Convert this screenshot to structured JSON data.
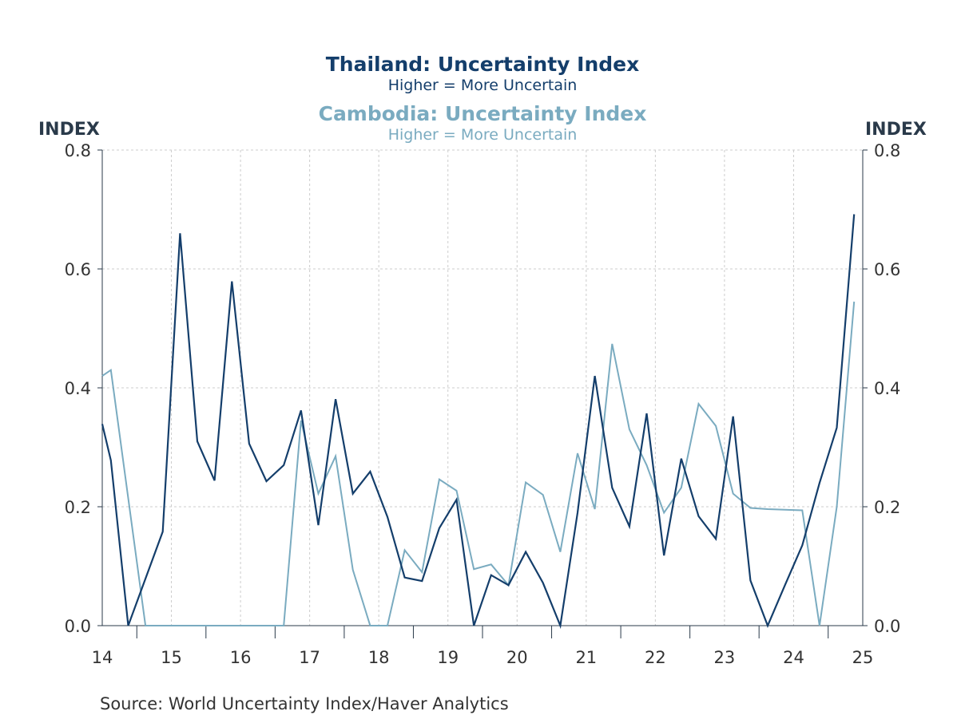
{
  "header": {
    "title_thailand": "Thailand: Uncertainty Index",
    "subtitle_thailand": "Higher = More Uncertain",
    "title_cambodia": "Cambodia: Uncertainty Index",
    "subtitle_cambodia": "Higher = More Uncertain"
  },
  "axes": {
    "left_unit": "INDEX",
    "right_unit": "INDEX"
  },
  "footer": {
    "source": "Source:  World Uncertainty Index/Haver Analytics"
  },
  "colors": {
    "thailand": "#143e6b",
    "cambodia": "#7aabc0",
    "grid": "#cccccc",
    "axis": "#2a3a4a"
  },
  "chart_data": {
    "type": "line",
    "title": "Thailand: Uncertainty Index / Cambodia: Uncertainty Index",
    "ylabel": "INDEX",
    "ylim": [
      0,
      0.8
    ],
    "yticks": [
      "0.0",
      "0.2",
      "0.4",
      "0.6",
      "0.8"
    ],
    "xlim": [
      2014.0,
      2025.0
    ],
    "xticks": [
      "14",
      "15",
      "16",
      "17",
      "18",
      "19",
      "20",
      "21",
      "22",
      "23",
      "24",
      "25"
    ],
    "grid": true,
    "series": [
      {
        "name": "Thailand: Uncertainty Index",
        "color": "#143e6b",
        "x": [
          2014.0,
          2014.125,
          2014.375,
          2014.875,
          2015.125,
          2015.375,
          2015.625,
          2015.875,
          2016.125,
          2016.375,
          2016.625,
          2016.875,
          2017.125,
          2017.375,
          2017.625,
          2017.875,
          2018.125,
          2018.375,
          2018.625,
          2018.875,
          2019.125,
          2019.375,
          2019.625,
          2019.875,
          2020.125,
          2020.375,
          2020.625,
          2020.875,
          2021.125,
          2021.375,
          2021.625,
          2021.875,
          2022.125,
          2022.375,
          2022.625,
          2022.875,
          2023.125,
          2023.375,
          2023.625,
          2023.875,
          2024.125,
          2024.375,
          2024.625,
          2024.875
        ],
        "y": [
          0.339,
          0.278,
          0.0,
          0.158,
          0.66,
          0.31,
          0.244,
          0.579,
          0.306,
          0.243,
          0.27,
          0.362,
          0.169,
          0.381,
          0.222,
          0.259,
          0.183,
          0.081,
          0.075,
          0.164,
          0.212,
          0.0,
          0.085,
          0.068,
          0.124,
          0.072,
          0.0,
          0.19,
          0.42,
          0.232,
          0.167,
          0.357,
          0.118,
          0.281,
          0.184,
          0.146,
          0.352,
          0.076,
          0.0,
          0.068,
          0.135,
          0.24,
          0.333,
          0.692
        ]
      },
      {
        "name": "Cambodia: Uncertainty Index",
        "color": "#7aabc0",
        "x": [
          2014.0,
          2014.125,
          2014.625,
          2014.875,
          2015.125,
          2015.375,
          2015.625,
          2015.875,
          2016.125,
          2016.375,
          2016.625,
          2016.875,
          2017.125,
          2017.375,
          2017.625,
          2017.875,
          2018.125,
          2018.375,
          2018.625,
          2018.875,
          2019.125,
          2019.375,
          2019.625,
          2019.875,
          2020.125,
          2020.375,
          2020.625,
          2020.875,
          2021.125,
          2021.375,
          2021.625,
          2021.875,
          2022.125,
          2022.375,
          2022.625,
          2022.875,
          2023.125,
          2023.375,
          2023.625,
          2023.875,
          2024.125,
          2024.375,
          2024.625,
          2024.875
        ],
        "y": [
          0.42,
          0.43,
          0.0,
          0.0,
          0.0,
          0.0,
          0.0,
          0.0,
          0.0,
          0.0,
          0.0,
          0.345,
          0.222,
          0.285,
          0.094,
          0.0,
          0.0,
          0.127,
          0.09,
          0.246,
          0.227,
          0.095,
          0.103,
          0.068,
          0.241,
          0.22,
          0.124,
          0.29,
          0.196,
          0.474,
          0.33,
          0.27,
          0.19,
          0.232,
          0.373,
          0.336,
          0.222,
          0.198,
          0.196,
          0.195,
          0.194,
          0.0,
          0.2,
          0.545
        ]
      }
    ]
  }
}
